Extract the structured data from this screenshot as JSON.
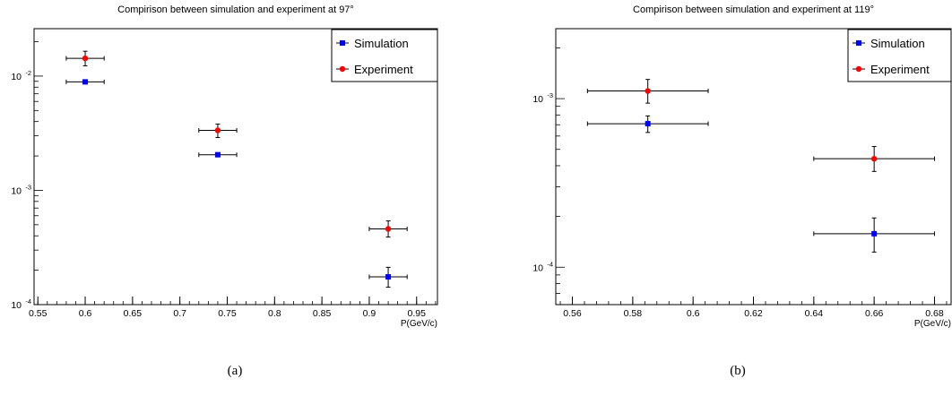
{
  "chart_data": [
    {
      "type": "scatter",
      "title": "Compirison between simulation and experiment at 97°",
      "xlabel": "P(GeV/c)",
      "ylabel": "",
      "xlim": [
        0.546,
        0.972
      ],
      "ylim": [
        0.0001,
        0.026
      ],
      "yscale": "log",
      "xticks": [
        0.55,
        0.6,
        0.65,
        0.7,
        0.75,
        0.8,
        0.85,
        0.9,
        0.95
      ],
      "xtick_labels": [
        "0.55",
        "0.6",
        "0.65",
        "0.7",
        "0.75",
        "0.8",
        "0.85",
        "0.9",
        "0.95"
      ],
      "xtick_minor_step": 0.01,
      "ytick_exponents": [
        -4,
        -3,
        -2
      ],
      "legend_position": "top-right",
      "grid": false,
      "series": [
        {
          "name": "Simulation",
          "color": "#0000ff",
          "marker": "square",
          "points": [
            {
              "x": 0.6,
              "y": 0.0089,
              "xerr": 0.02,
              "ylow": 0.0087,
              "yhigh": 0.0091
            },
            {
              "x": 0.74,
              "y": 0.00205,
              "xerr": 0.02,
              "ylow": 0.002,
              "yhigh": 0.0021
            },
            {
              "x": 0.92,
              "y": 0.000175,
              "xerr": 0.02,
              "ylow": 0.000142,
              "yhigh": 0.000212
            }
          ]
        },
        {
          "name": "Experiment",
          "color": "#ff0000",
          "marker": "circle",
          "points": [
            {
              "x": 0.6,
              "y": 0.0143,
              "xerr": 0.02,
              "ylow": 0.0123,
              "yhigh": 0.0165
            },
            {
              "x": 0.74,
              "y": 0.00335,
              "xerr": 0.02,
              "ylow": 0.0029,
              "yhigh": 0.0038
            },
            {
              "x": 0.92,
              "y": 0.00046,
              "xerr": 0.02,
              "ylow": 0.00039,
              "yhigh": 0.00054
            }
          ]
        }
      ]
    },
    {
      "type": "scatter",
      "title": "Compirison between simulation and experiment at 119°",
      "xlabel": "P(GeV/c)",
      "ylabel": "",
      "xlim": [
        0.5545,
        0.6855
      ],
      "ylim": [
        6e-05,
        0.0026
      ],
      "yscale": "log",
      "xticks": [
        0.56,
        0.58,
        0.6,
        0.62,
        0.64,
        0.66,
        0.68
      ],
      "xtick_labels": [
        "0.56",
        "0.58",
        "0.6",
        "0.62",
        "0.64",
        "0.66",
        "0.68"
      ],
      "xtick_minor_step": 0.004,
      "ytick_exponents": [
        -4,
        -3
      ],
      "legend_position": "top-right",
      "grid": false,
      "series": [
        {
          "name": "Simulation",
          "color": "#0000ff",
          "marker": "square",
          "points": [
            {
              "x": 0.585,
              "y": 0.00071,
              "xerr": 0.02,
              "ylow": 0.00063,
              "yhigh": 0.00079
            },
            {
              "x": 0.66,
              "y": 0.000158,
              "xerr": 0.02,
              "ylow": 0.000123,
              "yhigh": 0.000196
            }
          ]
        },
        {
          "name": "Experiment",
          "color": "#ff0000",
          "marker": "circle",
          "points": [
            {
              "x": 0.585,
              "y": 0.00111,
              "xerr": 0.02,
              "ylow": 0.00094,
              "yhigh": 0.0013
            },
            {
              "x": 0.66,
              "y": 0.00044,
              "xerr": 0.02,
              "ylow": 0.00037,
              "yhigh": 0.00052
            }
          ]
        }
      ]
    }
  ],
  "captions": [
    "(a)",
    "(b)"
  ]
}
